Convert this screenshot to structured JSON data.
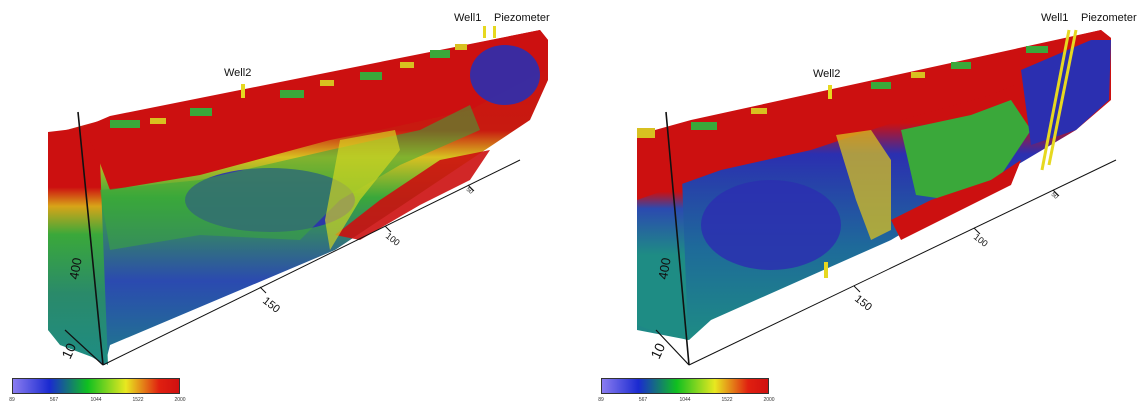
{
  "panels": [
    {
      "name": "left",
      "wells": {
        "well1": "Well1",
        "piezometer": "Piezometer",
        "well2": "Well2"
      },
      "axis": {
        "depth_label": "400",
        "base_label": "10",
        "dist_labels": [
          "150",
          "100",
          "50"
        ]
      },
      "colorbar": {
        "ticks": [
          "89",
          "567",
          "1044",
          "1522",
          "2000"
        ]
      }
    },
    {
      "name": "right",
      "wells": {
        "well1": "Well1",
        "piezometer": "Piezometer",
        "well2": "Well2"
      },
      "axis": {
        "depth_label": "400",
        "base_label": "10",
        "dist_labels": [
          "150",
          "100",
          "50"
        ]
      },
      "colorbar": {
        "ticks": [
          "89",
          "567",
          "1044",
          "1522",
          "2000"
        ]
      }
    }
  ],
  "colors": {
    "high": "#cc1010",
    "mid_high": "#e08a10",
    "mid": "#d8d820",
    "mid_low": "#3aa83a",
    "low": "#2b2fb0",
    "base": "#1e8c84",
    "well": "#e6d820",
    "colorbar_stops": [
      "#8a7cf0",
      "#1a2ad0",
      "#10c020",
      "#e8e820",
      "#e02010"
    ]
  }
}
